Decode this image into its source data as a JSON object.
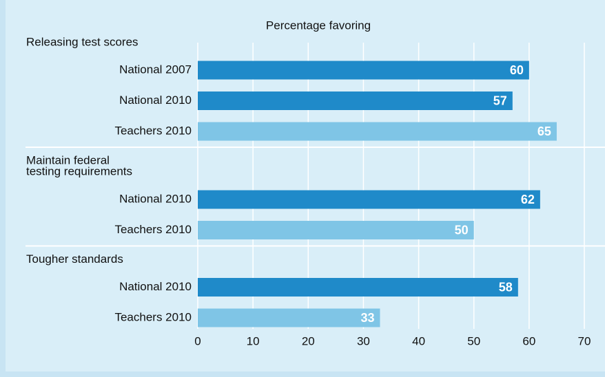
{
  "chart_data": {
    "type": "bar",
    "title": "Percentage favoring",
    "groups": [
      {
        "label_lines": [
          "Releasing test scores"
        ],
        "categories": [
          "National 2007",
          "National 2010",
          "Teachers 2010"
        ],
        "values": [
          60,
          57,
          65
        ],
        "colors": [
          "#1f8ac9",
          "#1f8ac9",
          "#7fc5e6"
        ]
      },
      {
        "label_lines": [
          "Maintain federal",
          "testing requirements"
        ],
        "categories": [
          "National 2010",
          "Teachers 2010"
        ],
        "values": [
          62,
          50
        ],
        "colors": [
          "#1f8ac9",
          "#7fc5e6"
        ]
      },
      {
        "label_lines": [
          "Tougher standards"
        ],
        "categories": [
          "National 2010",
          "Teachers 2010"
        ],
        "values": [
          58,
          33
        ],
        "colors": [
          "#1f8ac9",
          "#7fc5e6"
        ]
      }
    ],
    "xlim": [
      0,
      70
    ],
    "xticks": [
      0,
      10,
      20,
      30,
      40,
      50,
      60,
      70
    ],
    "grid": true
  }
}
